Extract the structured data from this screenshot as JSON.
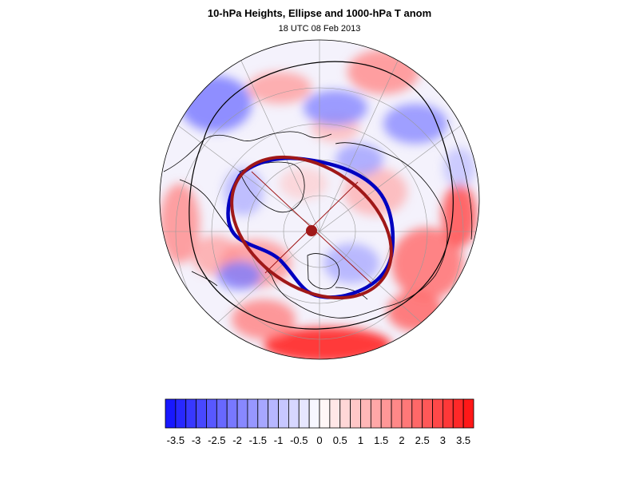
{
  "title": "10-hPa Heights, Ellipse and 1000-hPa T anom",
  "subtitle": "18 UTC 08 Feb 2013",
  "colors": {
    "cold_max": "#1010ff",
    "neutral": "#ffffff",
    "warm_max": "#ff1010",
    "vortex_contour": "#0000c0",
    "ellipse": "#a01818",
    "coastline": "#000000",
    "gridline": "#999999"
  },
  "map": {
    "projection": "north-polar-orthographic",
    "fill": "1000-hPa temperature anomaly"
  },
  "colorbar": {
    "min": -3.75,
    "max": 3.75,
    "step": 0.25,
    "tick_labels": [
      "-3.5",
      "-3",
      "-2.5",
      "-2",
      "-1.5",
      "-1",
      "-0.5",
      "0",
      "0.5",
      "1",
      "1.5",
      "2",
      "2.5",
      "3",
      "3.5"
    ],
    "tick_values": [
      -3.5,
      -3,
      -2.5,
      -2,
      -1.5,
      -1,
      -0.5,
      0,
      0.5,
      1,
      1.5,
      2,
      2.5,
      3,
      3.5
    ]
  }
}
